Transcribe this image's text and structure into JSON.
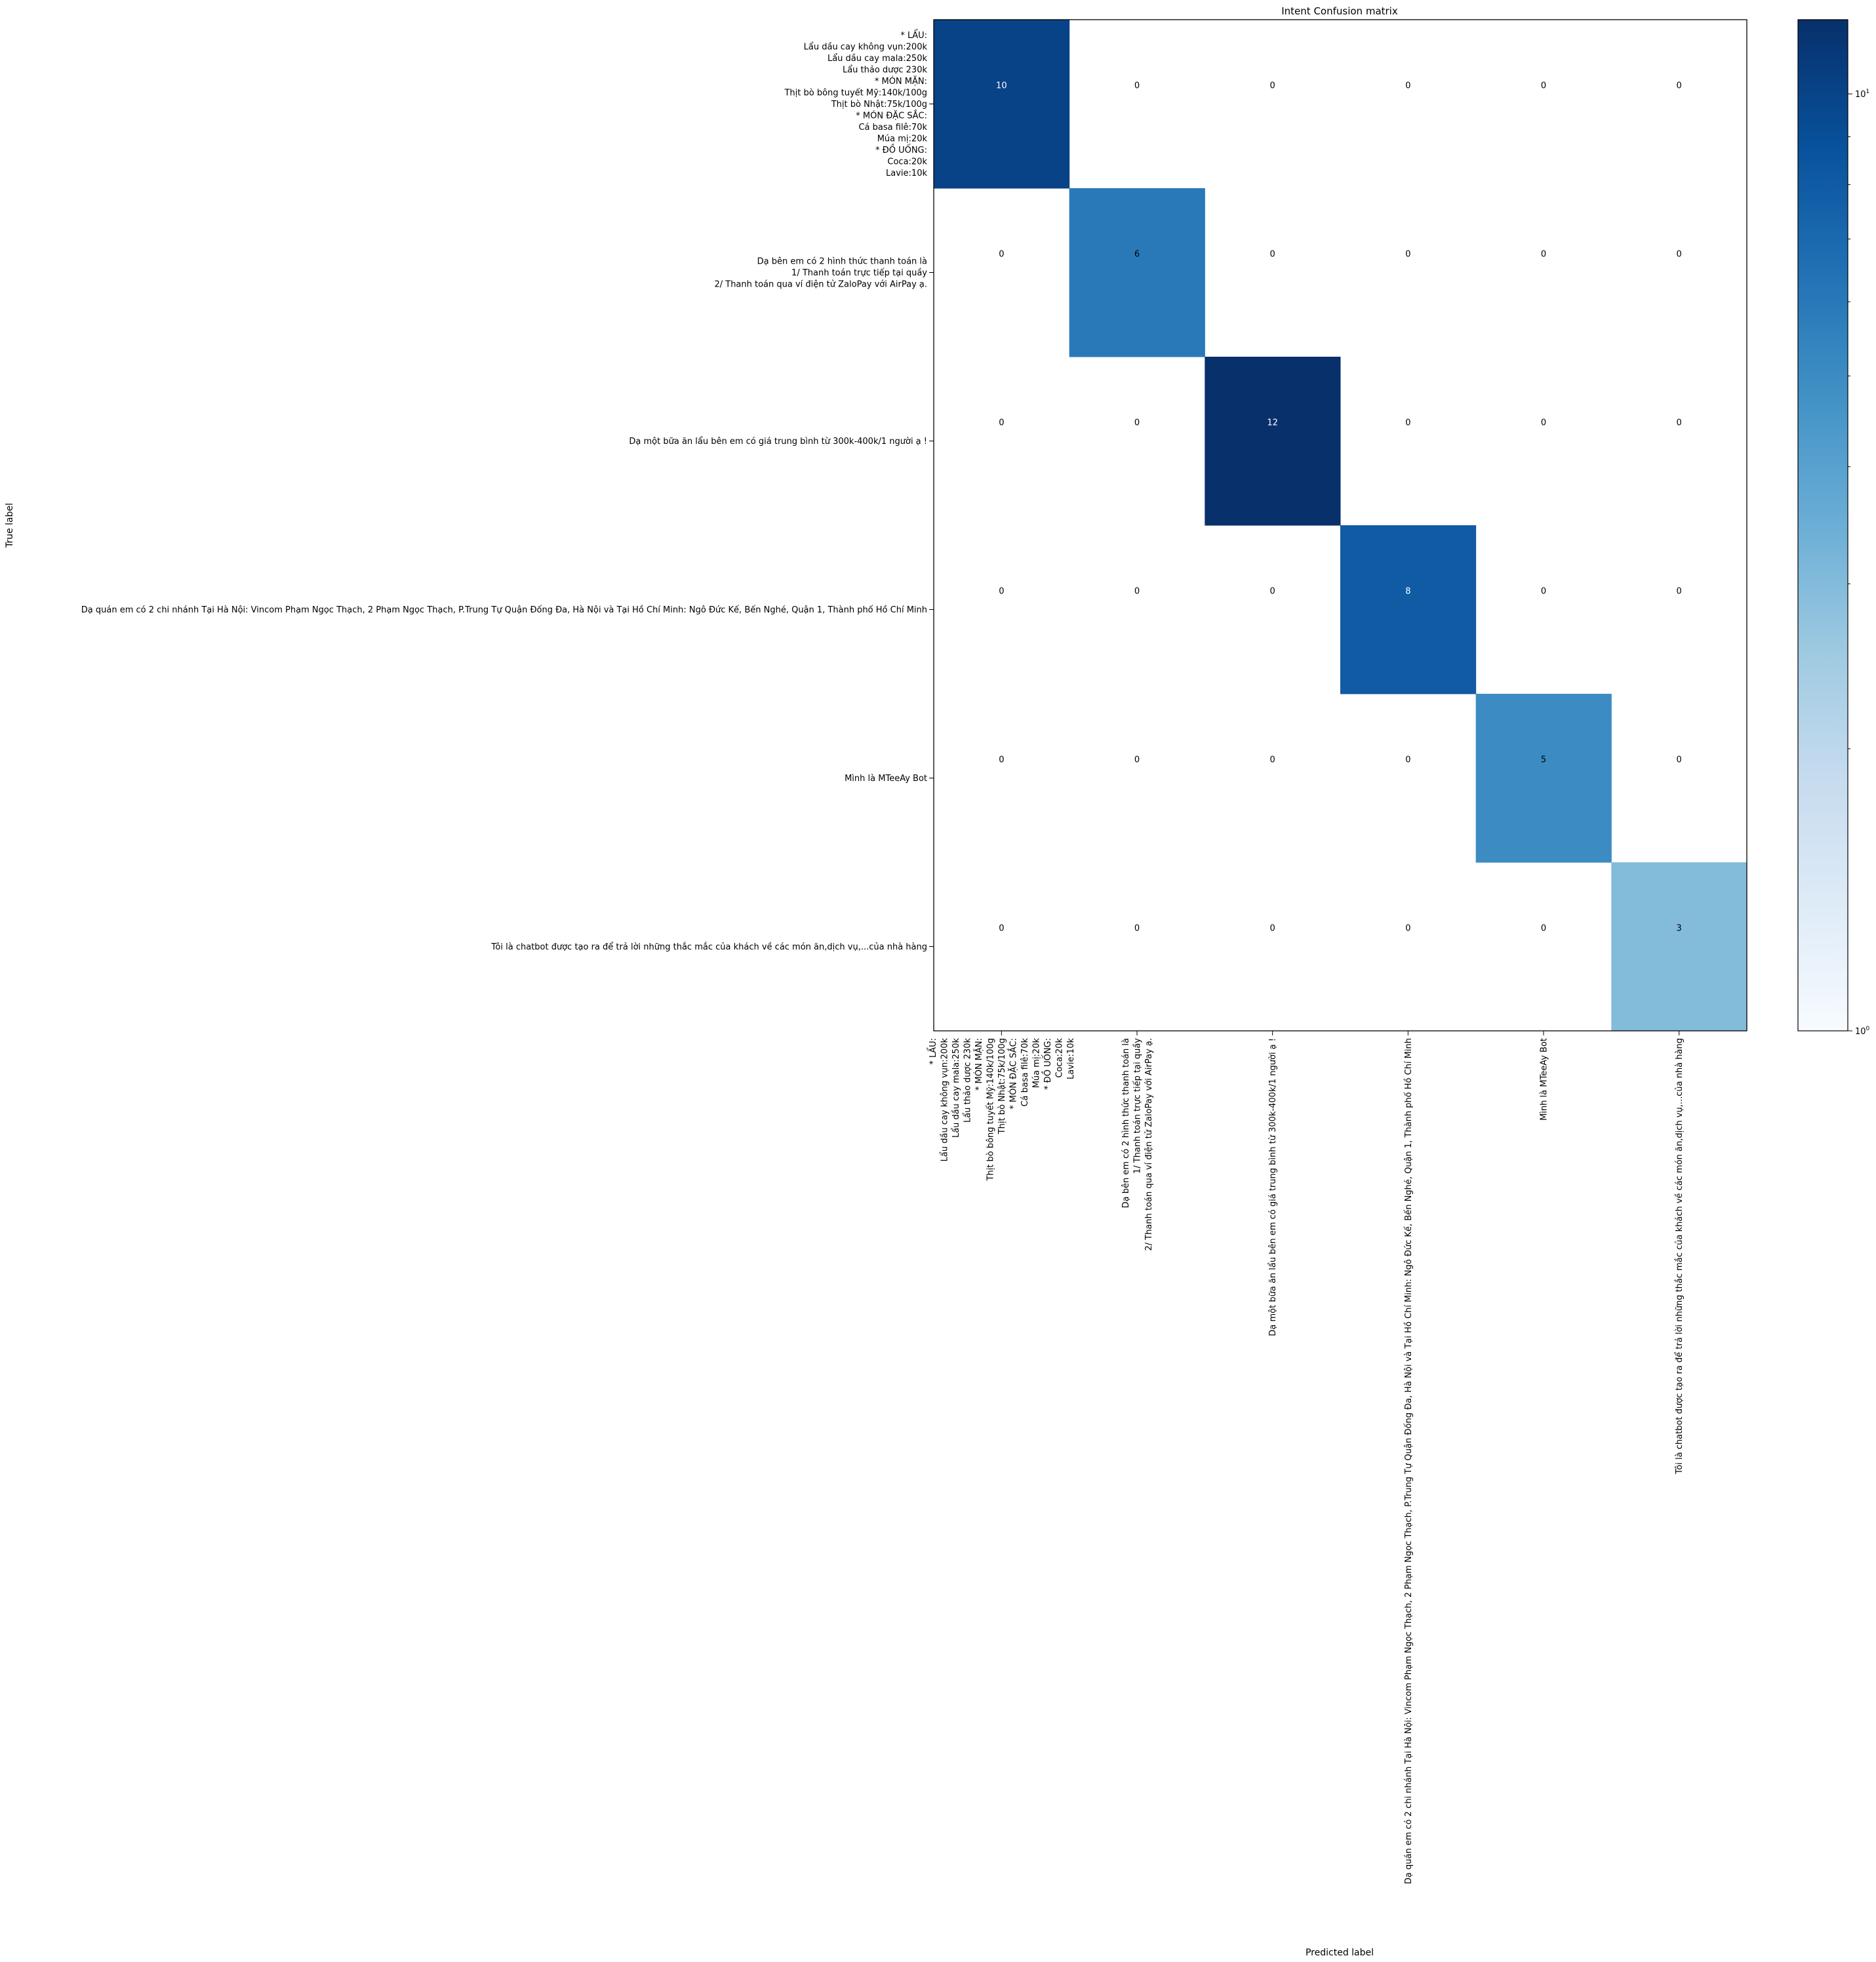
{
  "chart_data": {
    "type": "heatmap",
    "title": "Intent Confusion matrix",
    "xlabel": "Predicted label",
    "ylabel": "True label",
    "colormap": "Blues",
    "color_scale": "log",
    "vmin": 1,
    "vmax": 12,
    "colorbar_ticks": [
      {
        "value": 1,
        "base": "10",
        "exp": "0"
      },
      {
        "value": 10,
        "base": "10",
        "exp": "1"
      }
    ],
    "labels": [
      [
        "* LẨU:",
        "Lẩu dầu cay không vụn:200k",
        "Lẩu dầu cay mala:250k",
        "Lẩu thảo dược 230k",
        "* MÓN MẶN:",
        "Thịt bò bông tuyết Mỹ:140k/100g",
        "Thịt bò Nhật:75k/100g",
        "* MÓN ĐẶC SẮC:",
        "Cá basa filê:70k",
        "Múa mị:20k",
        "* ĐỒ UỐNG:",
        "Coca:20k",
        "Lavie:10k"
      ],
      [
        "Dạ bên em có 2 hình thức thanh toán là",
        "1/ Thanh toán trực tiếp tại quầy",
        "2/ Thanh toán qua ví điện tử ZaloPay với AirPay ạ."
      ],
      [
        "Dạ một bữa ăn lẩu bên em có giá trung bình từ 300k-400k/1 người ạ !"
      ],
      [
        "Dạ quán em có 2 chi nhánh Tại Hà Nội: Vincom Phạm Ngọc Thạch, 2 Phạm Ngọc Thạch, P.Trung Tự Quận Đống Đa, Hà Nội và Tại Hồ Chí Minh: Ngô Đức Kế, Bến Nghé, Quận 1, Thành phố Hồ Chí Minh"
      ],
      [
        "Mình là MTeeAy Bot"
      ],
      [
        "Tôi là chatbot được tạo ra để trả lời những thắc mắc của khách về các món ăn,dịch vụ,...của nhà hàng"
      ]
    ],
    "matrix": [
      [
        10,
        0,
        0,
        0,
        0,
        0
      ],
      [
        0,
        6,
        0,
        0,
        0,
        0
      ],
      [
        0,
        0,
        12,
        0,
        0,
        0
      ],
      [
        0,
        0,
        0,
        8,
        0,
        0
      ],
      [
        0,
        0,
        0,
        0,
        5,
        0
      ],
      [
        0,
        0,
        0,
        0,
        0,
        3
      ]
    ]
  }
}
